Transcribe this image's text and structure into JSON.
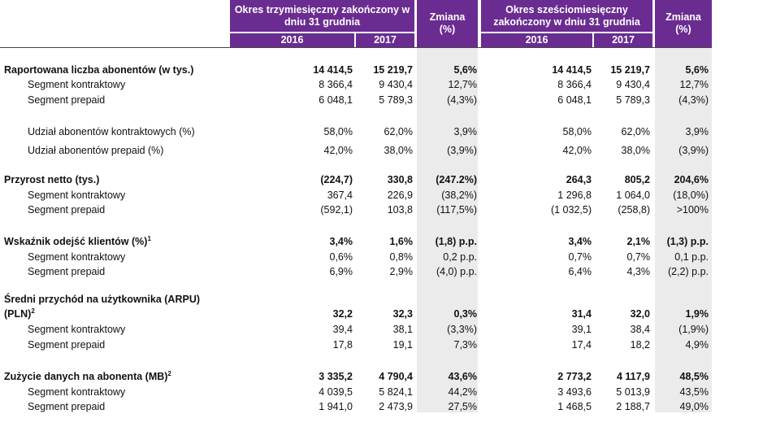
{
  "header": {
    "group1_title": "Okres trzymiesięczny zakończony w\ndniu 31 grudnia",
    "group2_title": "Okres sześciomiesięczny\nzakończony w dniu 31 grudnia",
    "change_label": "Zmiana\n(%)",
    "year_2016": "2016",
    "year_2017": "2017"
  },
  "rows": [
    {
      "label": "Raportowana liczba abonentów (w tys.)",
      "sup": "",
      "values": [
        "14 414,5",
        "15 219,7",
        "5,6%",
        "14 414,5",
        "15 219,7",
        "5,6%"
      ]
    },
    {
      "label": "Segment kontraktowy",
      "values": [
        "8 366,4",
        "9 430,4",
        "12,7%",
        "8 366,4",
        "9 430,4",
        "12,7%"
      ]
    },
    {
      "label": "Segment prepaid",
      "values": [
        "6 048,1",
        "5 789,3",
        "(4,3%)",
        "6 048,1",
        "5 789,3",
        "(4,3%)"
      ]
    },
    {
      "label": "Udział abonentów kontraktowych (%)",
      "values": [
        "58,0%",
        "62,0%",
        "3,9%",
        "58,0%",
        "62,0%",
        "3,9%"
      ]
    },
    {
      "label": "Udział abonentów prepaid (%)",
      "values": [
        "42,0%",
        "38,0%",
        "(3,9%)",
        "42,0%",
        "38,0%",
        "(3,9%)"
      ]
    },
    {
      "label": "Przyrost netto (tys.)",
      "sup": "",
      "values": [
        "(224,7)",
        "330,8",
        "(247.2%)",
        "264,3",
        "805,2",
        "204,6%"
      ]
    },
    {
      "label": "Segment kontraktowy",
      "values": [
        "367,4",
        "226,9",
        "(38,2%)",
        "1 296,8",
        "1 064,0",
        "(18,0%)"
      ]
    },
    {
      "label": "Segment prepaid",
      "values": [
        "(592,1)",
        "103,8",
        "(117,5%)",
        "(1 032,5)",
        "(258,8)",
        ">100%"
      ]
    },
    {
      "label": "Wskaźnik odejść klientów (%)",
      "sup": "1",
      "values": [
        "3,4%",
        "1,6%",
        "(1,8) p.p.",
        "3,4%",
        "2,1%",
        "(1,3) p.p."
      ]
    },
    {
      "label": "Segment kontraktowy",
      "values": [
        "0,6%",
        "0,8%",
        "0,2 p.p.",
        "0,7%",
        "0,7%",
        "0,1 p.p."
      ]
    },
    {
      "label": "Segment prepaid",
      "values": [
        "6,9%",
        "2,9%",
        "(4,0) p.p.",
        "6,4%",
        "4,3%",
        "(2,2) p.p."
      ]
    },
    {
      "label": "Średni przychód na użytkownika (ARPU)",
      "sup": ""
    },
    {
      "label": "(PLN)",
      "sup": "2",
      "values": [
        "32,2",
        "32,3",
        "0,3%",
        "31,4",
        "32,0",
        "1,9%"
      ]
    },
    {
      "label": "Segment kontraktowy",
      "values": [
        "39,4",
        "38,1",
        "(3,3%)",
        "39,1",
        "38,4",
        "(1,9%)"
      ]
    },
    {
      "label": "Segment prepaid",
      "values": [
        "17,8",
        "19,1",
        "7,3%",
        "17,4",
        "18,2",
        "4,9%"
      ]
    },
    {
      "label": "Zużycie danych na abonenta (MB)",
      "sup": "2",
      "values": [
        "3 335,2",
        "4 790,4",
        "43,6%",
        "2 773,2",
        "4 117,9",
        "48,5%"
      ]
    },
    {
      "label": "Segment kontraktowy",
      "values": [
        "4 039,5",
        "5 824,1",
        "44,2%",
        "3 493,6",
        "5 013,9",
        "43,5%"
      ]
    },
    {
      "label": "Segment prepaid",
      "values": [
        "1 941,0",
        "2 473,9",
        "27,5%",
        "1 468,5",
        "2 188,7",
        "49,0%"
      ]
    }
  ]
}
